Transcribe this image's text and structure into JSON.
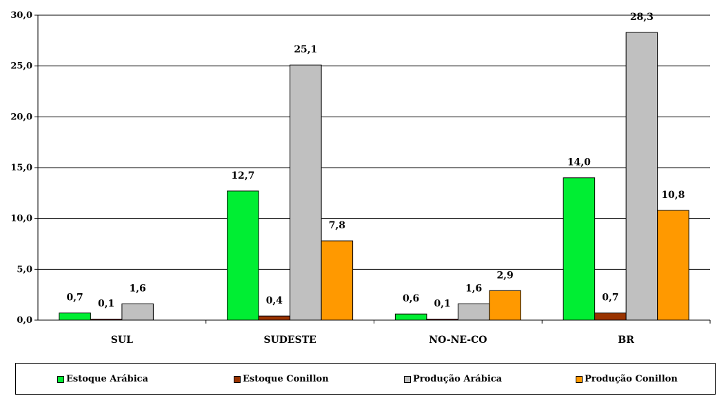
{
  "chart_data": {
    "type": "bar",
    "title": "",
    "xlabel": "",
    "ylabel": "",
    "ylim": [
      0,
      30
    ],
    "yticks": [
      "0,0",
      "5,0",
      "10,0",
      "15,0",
      "20,0",
      "25,0",
      "30,0"
    ],
    "ytick_values": [
      0,
      5,
      10,
      15,
      20,
      25,
      30
    ],
    "grid": true,
    "legend_position": "bottom",
    "categories": [
      "SUL",
      "SUDESTE",
      "NO-NE-CO",
      "BR"
    ],
    "series": [
      {
        "name": "Estoque Arábica",
        "color": "#00ee33",
        "values": [
          0.7,
          12.7,
          0.6,
          14.0
        ],
        "labels": [
          "0,7",
          "12,7",
          "0,6",
          "14,0"
        ]
      },
      {
        "name": "Estoque Conillon",
        "color": "#993300",
        "values": [
          0.1,
          0.4,
          0.1,
          0.7
        ],
        "labels": [
          "0,1",
          "0,4",
          "0,1",
          "0,7"
        ]
      },
      {
        "name": "Produção Arábica",
        "color": "#c0c0c0",
        "values": [
          1.6,
          25.1,
          1.6,
          28.3
        ],
        "labels": [
          "1,6",
          "25,1",
          "1,6",
          "28,3"
        ]
      },
      {
        "name": "Produção Conillon",
        "color": "#ff9900",
        "values": [
          null,
          7.8,
          2.9,
          10.8
        ],
        "labels": [
          null,
          "7,8",
          "2,9",
          "10,8"
        ]
      }
    ]
  }
}
